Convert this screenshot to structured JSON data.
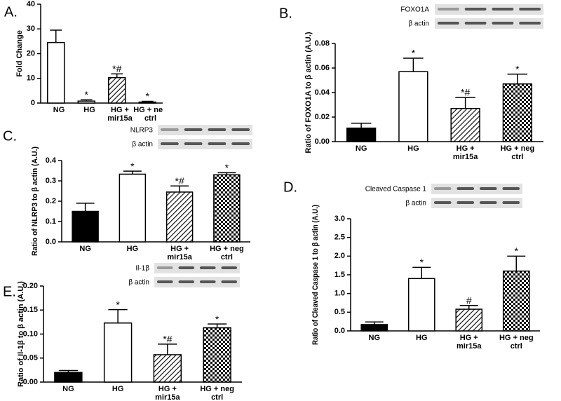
{
  "chart_data": [
    {
      "type": "bar",
      "panel": "A.",
      "y_label": "Fold Change",
      "categories": [
        "NG",
        "HG",
        "HG + mir15a",
        "HG + neg ctrl"
      ],
      "values": [
        24.5,
        0.8,
        10.3,
        0.4
      ],
      "error": [
        5.0,
        0.5,
        1.5,
        0.3
      ],
      "annotations": [
        null,
        "*",
        "*#",
        "*"
      ],
      "fills": [
        "white",
        "white",
        "hatch",
        "white"
      ],
      "ylim": [
        0,
        40
      ],
      "yticks": [
        0,
        10,
        20,
        30,
        40
      ]
    },
    {
      "type": "bar",
      "panel": "B.",
      "y_label": "Ratio of FOXO1A to β actin (A.U.)",
      "blot_labels": [
        "FOXO1A",
        "β actin"
      ],
      "categories": [
        "NG",
        "HG",
        "HG + mir15a",
        "HG + neg ctrl"
      ],
      "values": [
        0.011,
        0.057,
        0.027,
        0.047
      ],
      "error": [
        0.004,
        0.011,
        0.009,
        0.008
      ],
      "annotations": [
        null,
        "*",
        "*#",
        "*"
      ],
      "fills": [
        "black",
        "white",
        "hatch",
        "check"
      ],
      "ylim": [
        0,
        0.08
      ],
      "yticks": [
        {
          "value": 0,
          "label": "0.00"
        },
        {
          "value": 0.02,
          "label": "0.02"
        },
        {
          "value": 0.04,
          "label": "0.04"
        },
        {
          "value": 0.06,
          "label": "0.06"
        },
        {
          "value": 0.08,
          "label": "0.08"
        }
      ]
    },
    {
      "type": "bar",
      "panel": "C.",
      "y_label": "Ratio of NLRP3 to β actin (A.U.)",
      "blot_labels": [
        "NLRP3",
        "β actin"
      ],
      "categories": [
        "NG",
        "HG",
        "HG + mir15a",
        "HG + neg ctrl"
      ],
      "values": [
        0.15,
        0.333,
        0.245,
        0.33
      ],
      "error": [
        0.04,
        0.015,
        0.03,
        0.01
      ],
      "annotations": [
        null,
        "*",
        "*#",
        "*"
      ],
      "fills": [
        "black",
        "white",
        "hatch",
        "check"
      ],
      "ylim": [
        0,
        0.4
      ],
      "yticks": [
        {
          "value": 0,
          "label": "0.0"
        },
        0.1,
        0.2,
        0.3,
        0.4
      ]
    },
    {
      "type": "bar",
      "panel": "D.",
      "y_label": "Ratio of Cleaved Caspase 1 to β actin (A.U.)",
      "blot_labels": [
        "Cleaved Caspase 1",
        "β actin"
      ],
      "categories": [
        "NG",
        "HG",
        "HG + mir15a",
        "HG + neg ctrl"
      ],
      "values": [
        0.17,
        1.4,
        0.58,
        1.6
      ],
      "error": [
        0.07,
        0.3,
        0.1,
        0.4
      ],
      "annotations": [
        null,
        "*",
        "#",
        "*"
      ],
      "fills": [
        "black",
        "white",
        "hatch",
        "check"
      ],
      "ylim": [
        0,
        3.0
      ],
      "yticks": [
        {
          "value": 0,
          "label": "0.0"
        },
        0.5,
        {
          "value": 1,
          "label": "1.0"
        },
        1.5,
        {
          "value": 2,
          "label": "2.0"
        },
        2.5,
        {
          "value": 3,
          "label": "3.0"
        }
      ]
    },
    {
      "type": "bar",
      "panel": "E.",
      "y_label": "Ratio of Il-1β to β actin (A.U.)",
      "blot_labels": [
        "Il-1β",
        "β actin"
      ],
      "categories": [
        "NG",
        "HG",
        "HG + mir15a",
        "HG + neg ctrl"
      ],
      "values": [
        0.02,
        0.123,
        0.057,
        0.113
      ],
      "error": [
        0.004,
        0.028,
        0.022,
        0.008
      ],
      "annotations": [
        null,
        "*",
        "*#",
        "*"
      ],
      "fills": [
        "black",
        "white",
        "hatch",
        "check"
      ],
      "ylim": [
        0,
        0.2
      ],
      "yticks": [
        {
          "value": 0,
          "label": "0.00"
        },
        0.05,
        {
          "value": 0.1,
          "label": "0.10"
        },
        0.15,
        {
          "value": 0.2,
          "label": "0.20"
        }
      ]
    }
  ]
}
